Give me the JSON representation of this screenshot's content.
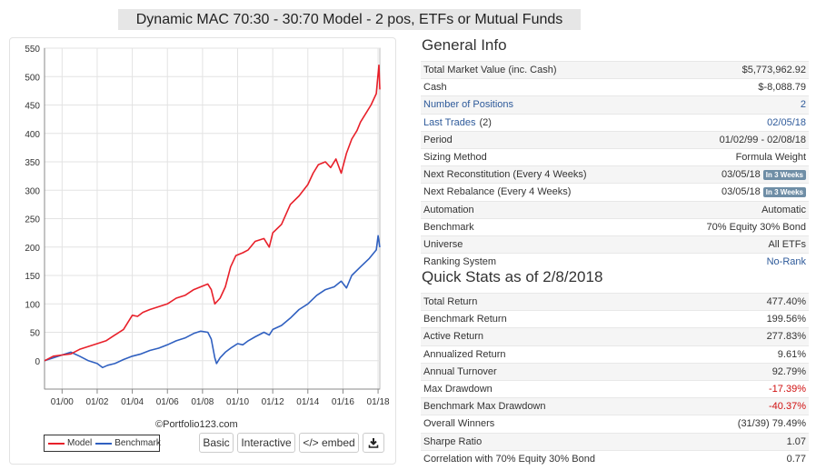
{
  "page_title": "Dynamic MAC 70:30 - 30:70 Model - 2 pos, ETFs or Mutual Funds",
  "chart_data": {
    "type": "line",
    "title": "",
    "xlabel": "",
    "ylabel": "",
    "ylim": [
      -50,
      550
    ],
    "xlim": [
      1999.0,
      2018.1
    ],
    "y_ticks": [
      0,
      50,
      100,
      150,
      200,
      250,
      300,
      350,
      400,
      450,
      500,
      550
    ],
    "x_ticks": [
      {
        "x": 2000,
        "label": "01/00"
      },
      {
        "x": 2002,
        "label": "01/02"
      },
      {
        "x": 2004,
        "label": "01/04"
      },
      {
        "x": 2006,
        "label": "01/06"
      },
      {
        "x": 2008,
        "label": "01/08"
      },
      {
        "x": 2010,
        "label": "01/10"
      },
      {
        "x": 2012,
        "label": "01/12"
      },
      {
        "x": 2014,
        "label": "01/14"
      },
      {
        "x": 2016,
        "label": "01/16"
      },
      {
        "x": 2018,
        "label": "01/18"
      }
    ],
    "grid": true,
    "series": [
      {
        "name": "Model",
        "color": "#e8202a",
        "x": [
          1999.0,
          1999.5,
          2000.0,
          2000.5,
          2001.0,
          2001.5,
          2002.0,
          2002.5,
          2003.0,
          2003.5,
          2004.0,
          2004.3,
          2004.6,
          2005.0,
          2005.5,
          2006.0,
          2006.5,
          2007.0,
          2007.5,
          2007.9,
          2008.3,
          2008.5,
          2008.7,
          2009.0,
          2009.3,
          2009.6,
          2009.9,
          2010.3,
          2010.6,
          2011.0,
          2011.5,
          2011.8,
          2012.0,
          2012.5,
          2013.0,
          2013.5,
          2014.0,
          2014.3,
          2014.6,
          2015.0,
          2015.3,
          2015.6,
          2015.9,
          2016.2,
          2016.5,
          2016.8,
          2017.0,
          2017.3,
          2017.6,
          2017.9,
          2018.0,
          2018.05,
          2018.1
        ],
        "values": [
          0,
          8,
          10,
          12,
          20,
          25,
          30,
          35,
          45,
          55,
          80,
          78,
          85,
          90,
          95,
          100,
          110,
          115,
          125,
          130,
          135,
          125,
          100,
          110,
          130,
          165,
          185,
          190,
          195,
          210,
          215,
          200,
          225,
          240,
          275,
          290,
          310,
          330,
          345,
          350,
          340,
          355,
          330,
          365,
          390,
          405,
          420,
          435,
          450,
          470,
          505,
          520,
          477.4
        ]
      },
      {
        "name": "Benchmark",
        "color": "#3060c0",
        "x": [
          1999.0,
          1999.5,
          2000.0,
          2000.5,
          2001.0,
          2001.5,
          2002.0,
          2002.3,
          2002.6,
          2003.0,
          2003.5,
          2004.0,
          2004.5,
          2005.0,
          2005.5,
          2006.0,
          2006.5,
          2007.0,
          2007.5,
          2007.9,
          2008.3,
          2008.5,
          2008.7,
          2008.8,
          2009.0,
          2009.3,
          2009.6,
          2010.0,
          2010.3,
          2010.6,
          2011.0,
          2011.5,
          2011.8,
          2012.0,
          2012.5,
          2013.0,
          2013.5,
          2014.0,
          2014.5,
          2015.0,
          2015.5,
          2015.9,
          2016.2,
          2016.5,
          2017.0,
          2017.5,
          2017.9,
          2018.0,
          2018.1
        ],
        "values": [
          0,
          5,
          10,
          15,
          8,
          0,
          -5,
          -12,
          -8,
          -5,
          2,
          8,
          12,
          18,
          22,
          28,
          35,
          40,
          48,
          52,
          50,
          38,
          5,
          -5,
          5,
          15,
          22,
          30,
          28,
          35,
          42,
          50,
          45,
          55,
          62,
          75,
          90,
          100,
          115,
          125,
          130,
          140,
          128,
          150,
          165,
          180,
          195,
          220,
          199.56
        ]
      }
    ]
  },
  "copyright": "©Portfolio123.com",
  "legend": {
    "model": "Model",
    "benchmark": "Benchmark"
  },
  "buttons": {
    "basic": "Basic",
    "interactive": "Interactive",
    "embed": "</> embed"
  },
  "general_info": {
    "title": "General Info",
    "rows": [
      {
        "label": "Total Market Value (inc. Cash)",
        "value": "$5,773,962.92"
      },
      {
        "label": "Cash",
        "value": "$-8,088.79"
      },
      {
        "label": "Number of Positions",
        "value": "2",
        "label_link": true,
        "value_link": true
      },
      {
        "label": "Last Trades",
        "label_suffix": "(2)",
        "value": "02/05/18",
        "label_link": true,
        "value_link": true
      },
      {
        "label": "Period",
        "value": "01/02/99 - 02/08/18"
      },
      {
        "label": "Sizing Method",
        "value": "Formula Weight"
      },
      {
        "label": "Next Reconstitution (Every 4 Weeks)",
        "value": "03/05/18",
        "badge": "In 3 Weeks"
      },
      {
        "label": "Next Rebalance (Every 4 Weeks)",
        "value": "03/05/18",
        "badge": "In 3 Weeks"
      },
      {
        "label": "Automation",
        "value": "Automatic"
      },
      {
        "label": "Benchmark",
        "value": "70% Equity 30% Bond"
      },
      {
        "label": "Universe",
        "value": "All ETFs"
      },
      {
        "label": "Ranking System",
        "value": "No-Rank",
        "value_link": true
      }
    ]
  },
  "quick_stats": {
    "title": "Quick Stats as of 2/8/2018",
    "rows": [
      {
        "label": "Total Return",
        "value": "477.40%"
      },
      {
        "label": "Benchmark Return",
        "value": "199.56%"
      },
      {
        "label": "Active Return",
        "value": "277.83%"
      },
      {
        "label": "Annualized Return",
        "value": "9.61%"
      },
      {
        "label": "Annual Turnover",
        "value": "92.79%"
      },
      {
        "label": "Max Drawdown",
        "value": "-17.39%",
        "negative": true
      },
      {
        "label": "Benchmark Max Drawdown",
        "value": "-40.37%",
        "negative": true
      },
      {
        "label": "Overall Winners",
        "value": "(31/39) 79.49%"
      },
      {
        "label": "Sharpe Ratio",
        "value": "1.07"
      },
      {
        "label": "Correlation with 70% Equity 30% Bond",
        "value": "0.77"
      }
    ]
  }
}
